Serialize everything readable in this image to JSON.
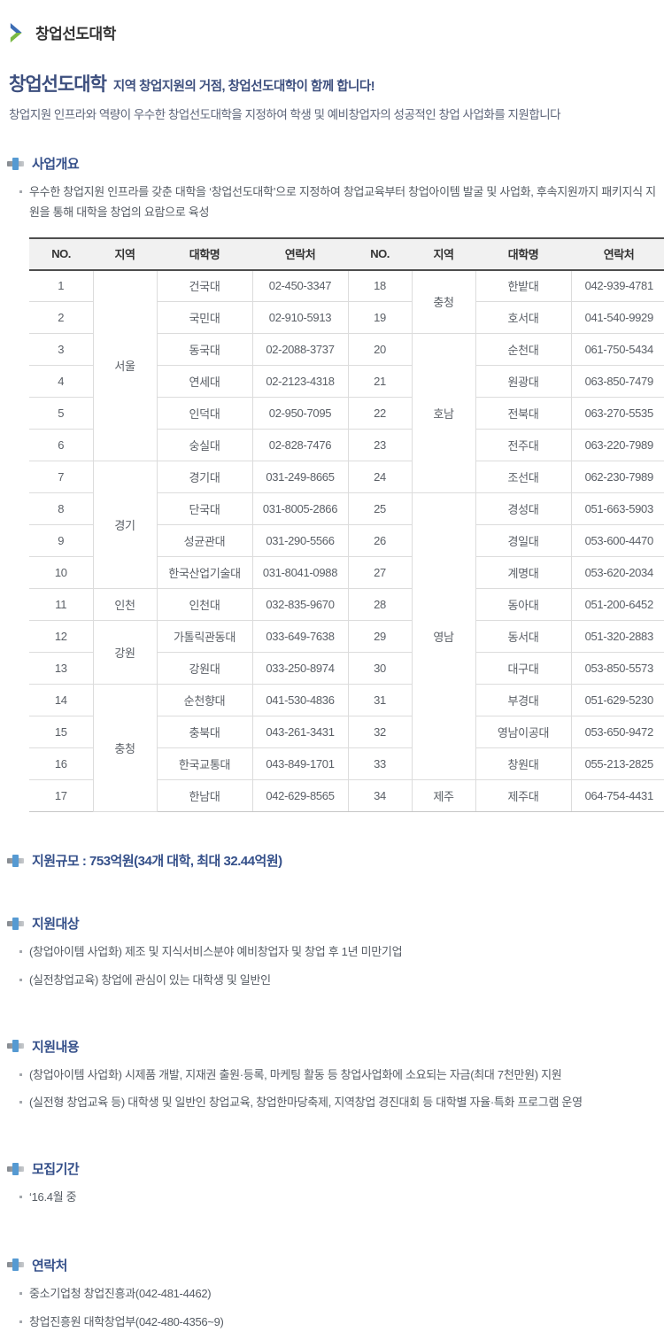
{
  "colors": {
    "accent_navy": "#3d4f7e",
    "section_navy": "#35508a",
    "icon_blue": "#569ad2",
    "logo_blue": "#3c6cb4",
    "logo_green": "#7ab944"
  },
  "logo": {
    "text": "창업선도대학"
  },
  "intro": {
    "title": "창업선도대학",
    "tagline": "지역 창업지원의 거점, 창업선도대학이 함께 합니다!",
    "subtitle": "창업지원 인프라와 역량이 우수한 창업선도대학을 지정하여 학생 및 예비창업자의 성공적인 창업 사업화를 지원합니다"
  },
  "sections": {
    "overview": {
      "title": "사업개요",
      "bullets": [
        "우수한 창업지원 인프라를 갖춘 대학을 ‘창업선도대학’으로 지정하여 창업교육부터 창업아이템 발굴 및 사업화, 후속지원까지 패키지식 지원을 통해 대학을 창업의 요람으로 육성"
      ]
    },
    "scale": {
      "title": "지원규모 : 753억원(34개 대학, 최대 32.44억원)",
      "bullets": []
    },
    "target": {
      "title": "지원대상",
      "bullets": [
        "(창업아이템 사업화) 제조 및 지식서비스분야 예비창업자 및 창업 후 1년 미만기업",
        "(실전창업교육) 창업에 관심이 있는 대학생 및 일반인"
      ]
    },
    "content": {
      "title": "지원내용",
      "bullets": [
        "(창업아이템 사업화) 시제품 개발, 지재권 출원·등록, 마케팅 활동 등 창업사업화에 소요되는 자금(최대 7천만원) 지원",
        "(실전형 창업교육 등) 대학생 및 일반인 창업교육, 창업한마당축제, 지역창업 경진대회 등 대학별 자율·특화 프로그램 운영"
      ]
    },
    "period": {
      "title": "모집기간",
      "bullets": [
        "‘16.4월 중"
      ]
    },
    "contact": {
      "title": "연락처",
      "bullets": [
        "중소기업청 창업진흥과(042-481-4462)",
        "창업진흥원 대학창업부(042-480-4356~9)"
      ]
    }
  },
  "table": {
    "headers": [
      "NO.",
      "지역",
      "대학명",
      "연락처",
      "NO.",
      "지역",
      "대학명",
      "연락처"
    ],
    "left_rows": [
      {
        "no": "1",
        "region": {
          "name": "서울",
          "span": 6
        },
        "univ": "건국대",
        "tel": "02-450-3347"
      },
      {
        "no": "2",
        "univ": "국민대",
        "tel": "02-910-5913"
      },
      {
        "no": "3",
        "univ": "동국대",
        "tel": "02-2088-3737"
      },
      {
        "no": "4",
        "univ": "연세대",
        "tel": "02-2123-4318"
      },
      {
        "no": "5",
        "univ": "인덕대",
        "tel": "02-950-7095"
      },
      {
        "no": "6",
        "univ": "숭실대",
        "tel": "02-828-7476"
      },
      {
        "no": "7",
        "region": {
          "name": "경기",
          "span": 4
        },
        "univ": "경기대",
        "tel": "031-249-8665"
      },
      {
        "no": "8",
        "univ": "단국대",
        "tel": "031-8005-2866"
      },
      {
        "no": "9",
        "univ": "성균관대",
        "tel": "031-290-5566"
      },
      {
        "no": "10",
        "univ": "한국산업기술대",
        "tel": "031-8041-0988"
      },
      {
        "no": "11",
        "region": {
          "name": "인천",
          "span": 1
        },
        "univ": "인천대",
        "tel": "032-835-9670"
      },
      {
        "no": "12",
        "region": {
          "name": "강원",
          "span": 2
        },
        "univ": "가톨릭관동대",
        "tel": "033-649-7638"
      },
      {
        "no": "13",
        "univ": "강원대",
        "tel": "033-250-8974"
      },
      {
        "no": "14",
        "region": {
          "name": "충청",
          "span": 4
        },
        "univ": "순천향대",
        "tel": "041-530-4836"
      },
      {
        "no": "15",
        "univ": "충북대",
        "tel": "043-261-3431"
      },
      {
        "no": "16",
        "univ": "한국교통대",
        "tel": "043-849-1701"
      },
      {
        "no": "17",
        "univ": "한남대",
        "tel": "042-629-8565"
      }
    ],
    "right_rows": [
      {
        "no": "18",
        "region": {
          "name": "충청",
          "span": 2
        },
        "univ": "한밭대",
        "tel": "042-939-4781"
      },
      {
        "no": "19",
        "univ": "호서대",
        "tel": "041-540-9929"
      },
      {
        "no": "20",
        "region": {
          "name": "호남",
          "span": 5
        },
        "univ": "순천대",
        "tel": "061-750-5434"
      },
      {
        "no": "21",
        "univ": "원광대",
        "tel": "063-850-7479"
      },
      {
        "no": "22",
        "univ": "전북대",
        "tel": "063-270-5535"
      },
      {
        "no": "23",
        "univ": "전주대",
        "tel": "063-220-7989"
      },
      {
        "no": "24",
        "univ": "조선대",
        "tel": "062-230-7989"
      },
      {
        "no": "25",
        "region": {
          "name": "영남",
          "span": 9
        },
        "univ": "경성대",
        "tel": "051-663-5903"
      },
      {
        "no": "26",
        "univ": "경일대",
        "tel": "053-600-4470"
      },
      {
        "no": "27",
        "univ": "계명대",
        "tel": "053-620-2034"
      },
      {
        "no": "28",
        "univ": "동아대",
        "tel": "051-200-6452"
      },
      {
        "no": "29",
        "univ": "동서대",
        "tel": "051-320-2883"
      },
      {
        "no": "30",
        "univ": "대구대",
        "tel": "053-850-5573"
      },
      {
        "no": "31",
        "univ": "부경대",
        "tel": "051-629-5230"
      },
      {
        "no": "32",
        "univ": "영남이공대",
        "tel": "053-650-9472"
      },
      {
        "no": "33",
        "univ": "창원대",
        "tel": "055-213-2825"
      },
      {
        "no": "34",
        "region": {
          "name": "제주",
          "span": 1
        },
        "univ": "제주대",
        "tel": "064-754-4431"
      }
    ]
  }
}
